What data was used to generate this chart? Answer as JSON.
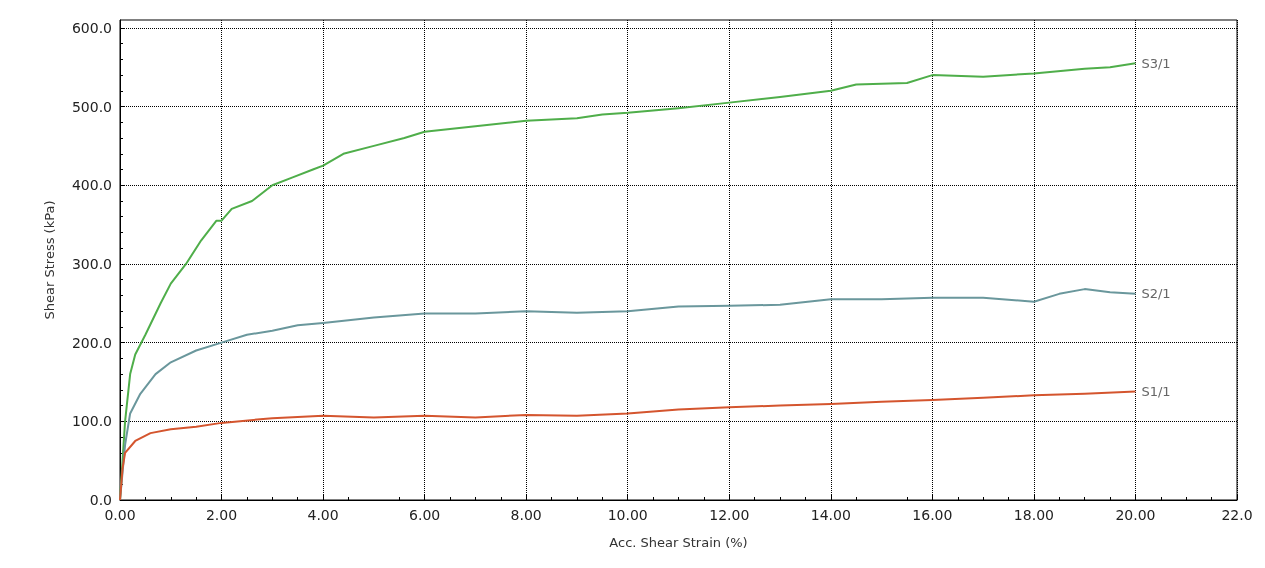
{
  "chart_data": {
    "type": "line",
    "xlabel": "Acc. Shear Strain (%)",
    "ylabel": "Shear Stress (kPa)",
    "xlim": [
      0,
      22
    ],
    "ylim": [
      0,
      610
    ],
    "xticks": [
      {
        "value": 0,
        "label": "0.00"
      },
      {
        "value": 2,
        "label": "2.00"
      },
      {
        "value": 4,
        "label": "4.00"
      },
      {
        "value": 6,
        "label": "6.00"
      },
      {
        "value": 8,
        "label": "8.00"
      },
      {
        "value": 10,
        "label": "10.00"
      },
      {
        "value": 12,
        "label": "12.00"
      },
      {
        "value": 14,
        "label": "14.00"
      },
      {
        "value": 16,
        "label": "16.00"
      },
      {
        "value": 18,
        "label": "18.00"
      },
      {
        "value": 20,
        "label": "20.00"
      },
      {
        "value": 22,
        "label": "22.0"
      }
    ],
    "yticks": [
      {
        "value": 0,
        "label": "0.0"
      },
      {
        "value": 100,
        "label": "100.0"
      },
      {
        "value": 200,
        "label": "200.0"
      },
      {
        "value": 300,
        "label": "300.0"
      },
      {
        "value": 400,
        "label": "400.0"
      },
      {
        "value": 500,
        "label": "500.0"
      },
      {
        "value": 600,
        "label": "600.0"
      }
    ],
    "grid": true,
    "legend": false,
    "marker": "none",
    "line_style": "solid",
    "series": [
      {
        "name": "S3/1",
        "color": "#4fae4a",
        "x": [
          0,
          0.1,
          0.2,
          0.3,
          0.5,
          0.8,
          1.0,
          1.3,
          1.6,
          1.9,
          2.0,
          2.2,
          2.6,
          3.0,
          3.4,
          3.8,
          4.0,
          4.4,
          5.0,
          5.6,
          6.0,
          7.0,
          8.0,
          9.0,
          9.5,
          10,
          11,
          12,
          13,
          14,
          14.5,
          15.5,
          16,
          17,
          18,
          19,
          19.5,
          20
        ],
        "values": [
          0,
          100,
          160,
          185,
          210,
          250,
          275,
          300,
          330,
          355,
          355,
          370,
          380,
          400,
          410,
          420,
          425,
          440,
          450,
          460,
          468,
          475,
          482,
          485,
          490,
          492,
          498,
          505,
          512,
          520,
          528,
          530,
          540,
          538,
          542,
          548,
          550,
          555
        ]
      },
      {
        "name": "S2/1",
        "color": "#6a979c",
        "x": [
          0,
          0.1,
          0.2,
          0.4,
          0.7,
          1.0,
          1.5,
          2.0,
          2.5,
          3.0,
          3.5,
          4.0,
          5.0,
          6.0,
          7.0,
          8.0,
          9.0,
          10,
          11,
          12,
          13,
          14,
          15,
          16,
          17,
          18,
          18.5,
          19,
          19.5,
          20
        ],
        "values": [
          0,
          70,
          110,
          135,
          160,
          175,
          190,
          200,
          210,
          215,
          222,
          225,
          232,
          237,
          237,
          240,
          238,
          240,
          246,
          247,
          248,
          255,
          255,
          257,
          257,
          252,
          262,
          268,
          264,
          262
        ]
      },
      {
        "name": "S1/1",
        "color": "#d4552e",
        "x": [
          0,
          0.05,
          0.1,
          0.3,
          0.6,
          1.0,
          1.5,
          2.0,
          3.0,
          4.0,
          5.0,
          6.0,
          7.0,
          8.0,
          9.0,
          10,
          11,
          12,
          13,
          14,
          15,
          16,
          17,
          18,
          19,
          20
        ],
        "values": [
          0,
          40,
          60,
          75,
          85,
          90,
          93,
          98,
          104,
          107,
          105,
          107,
          105,
          108,
          107,
          110,
          115,
          118,
          120,
          122,
          125,
          127,
          130,
          133,
          135,
          138
        ]
      }
    ]
  }
}
